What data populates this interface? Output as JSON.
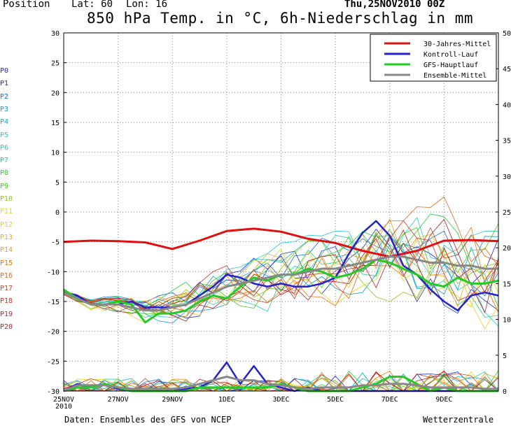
{
  "header": {
    "position_label": "Position",
    "lat_label": "Lat: 60",
    "lon_label": "Lon: 16",
    "date": "Thu,25NOV2010 00Z",
    "title": "850 hPa Temp. in °C, 6h-Niederschlag in mm"
  },
  "footer": {
    "source": "Daten: Ensembles des GFS von NCEP",
    "brand": "Wetterzentrale"
  },
  "member_labels": [
    "P0",
    "P1",
    "P2",
    "P3",
    "P4",
    "P5",
    "P6",
    "P7",
    "P8",
    "P9",
    "P10",
    "P11",
    "P12",
    "P13",
    "P14",
    "P15",
    "P16",
    "P17",
    "P18",
    "P19",
    "P20"
  ],
  "member_colors": [
    "#2222dd",
    "#1133cc",
    "#1166dd",
    "#1199dd",
    "#11aacc",
    "#22cccc",
    "#22ccaa",
    "#22cc77",
    "#22cc33",
    "#44cc11",
    "#88cc11",
    "#dddd11",
    "#eecc22",
    "#eeaa22",
    "#ee9922",
    "#ee7711",
    "#dd6622",
    "#cc4422",
    "#cc3322",
    "#bb2222",
    "#aa2222"
  ],
  "chart_data": {
    "type": "line",
    "x_ticks": [
      "25NOV\n2010",
      "27NOV",
      "29NOV",
      "1DEC",
      "3DEC",
      "5DEC",
      "7DEC",
      "9DEC"
    ],
    "x_range_days": [
      0,
      16
    ],
    "y_left_range": [
      -30,
      30
    ],
    "y_left_ticks": [
      30,
      25,
      20,
      15,
      10,
      5,
      0,
      -5,
      -10,
      -15,
      -20,
      -25,
      -30
    ],
    "y_right_range": [
      0,
      50
    ],
    "y_right_ticks": [
      50,
      45,
      40,
      35,
      30,
      25,
      20,
      15,
      10,
      5,
      0
    ],
    "grid": true,
    "legend_position": "top-right",
    "legend": [
      {
        "name": "30-Jahres-Mittel",
        "color": "#e01010"
      },
      {
        "name": "Kontroll-Lauf",
        "color": "#2222cc"
      },
      {
        "name": "GFS-Hauptlauf",
        "color": "#22cc22"
      },
      {
        "name": "Ensemble-Mittel",
        "color": "#888888"
      }
    ],
    "series": [
      {
        "name": "30-Jahres-Mittel",
        "color": "#e01010",
        "width": 3,
        "x": [
          0,
          1,
          2,
          3,
          4,
          5,
          6,
          7,
          8,
          9,
          10,
          11,
          12,
          13,
          14,
          15,
          16
        ],
        "y": [
          -5,
          -4.8,
          -4.9,
          -5.1,
          -6.2,
          -4.8,
          -3.2,
          -2.8,
          -3.3,
          -4.5,
          -5.2,
          -6.5,
          -7.5,
          -6.5,
          -4.8,
          -4.7,
          -4.9
        ]
      },
      {
        "name": "Kontroll-Lauf",
        "color": "#2222cc",
        "width": 2.5,
        "x": [
          0,
          0.5,
          1,
          1.5,
          2,
          2.5,
          3,
          3.5,
          4,
          4.5,
          5,
          5.5,
          6,
          6.5,
          7,
          7.5,
          8,
          8.5,
          9,
          9.5,
          10,
          10.5,
          11,
          11.5,
          12,
          12.5,
          13,
          13.5,
          14,
          14.5,
          15,
          15.5,
          16
        ],
        "y": [
          -13.5,
          -14,
          -15.5,
          -15.5,
          -15.5,
          -15,
          -16,
          -16,
          -16,
          -15.5,
          -14,
          -12.5,
          -10.5,
          -11,
          -12,
          -12.5,
          -12,
          -12.5,
          -12.5,
          -12,
          -11,
          -7,
          -3.5,
          -1.5,
          -4,
          -9,
          -10.5,
          -13,
          -15,
          -16.5,
          -14,
          -13.5,
          -14
        ]
      },
      {
        "name": "GFS-Hauptlauf",
        "color": "#22cc22",
        "width": 3,
        "x": [
          0,
          0.5,
          1,
          1.5,
          2,
          2.5,
          3,
          3.5,
          4,
          4.5,
          5,
          5.5,
          6,
          6.5,
          7,
          7.5,
          8,
          8.5,
          9,
          9.5,
          10,
          10.5,
          11,
          11.5,
          12,
          12.5,
          13,
          13.5,
          14,
          14.5,
          15,
          15.5,
          16
        ],
        "y": [
          -13,
          -14.5,
          -15.5,
          -15.5,
          -15,
          -15.5,
          -18.5,
          -17,
          -17,
          -16.5,
          -15,
          -14,
          -14.5,
          -12.5,
          -11,
          -11.5,
          -10.5,
          -10.5,
          -9.5,
          -10,
          -11,
          -10.5,
          -9.5,
          -8,
          -8.5,
          -9.5,
          -10.5,
          -12,
          -12.5,
          -11,
          -12,
          -12,
          -11.5
        ]
      },
      {
        "name": "Ensemble-Mittel",
        "color": "#888888",
        "width": 3,
        "x": [
          0,
          0.5,
          1,
          1.5,
          2,
          2.5,
          3,
          3.5,
          4,
          4.5,
          5,
          5.5,
          6,
          6.5,
          7,
          7.5,
          8,
          8.5,
          9,
          9.5,
          10,
          10.5,
          11,
          11.5,
          12,
          12.5,
          13,
          13.5,
          14,
          14.5,
          15,
          15.5,
          16
        ],
        "y": [
          -13.5,
          -14.5,
          -15.5,
          -15.5,
          -15.5,
          -16,
          -16.5,
          -16.5,
          -16,
          -15.5,
          -14.5,
          -13.5,
          -12.5,
          -12,
          -11.5,
          -11,
          -10.5,
          -10.5,
          -10,
          -9.5,
          -9.5,
          -9,
          -8.5,
          -8,
          -7.5,
          -7.5,
          -8,
          -8.5,
          -8.5,
          -9,
          -9,
          -9.5,
          -9.5
        ]
      }
    ],
    "precip_series": [
      {
        "name": "Kontroll-Lauf",
        "color": "#2222cc",
        "width": 2.5,
        "x": [
          0,
          0.5,
          1,
          1.5,
          2,
          2.5,
          3,
          3.5,
          4,
          4.5,
          5,
          5.5,
          6,
          6.5,
          7,
          7.5,
          8,
          8.5,
          9,
          9.5,
          10,
          10.5,
          11,
          11.5,
          12,
          12.5,
          13,
          13.5,
          14,
          14.5,
          15,
          15.5,
          16
        ],
        "y": [
          0,
          1,
          0.5,
          1,
          0.3,
          0,
          0,
          0,
          0,
          0.3,
          0.5,
          1.5,
          4,
          1,
          3.5,
          1,
          0.5,
          0,
          0.5,
          0,
          0,
          0,
          0,
          0,
          0,
          0,
          0,
          0,
          0,
          0,
          0,
          0,
          0
        ]
      },
      {
        "name": "GFS-Hauptlauf",
        "color": "#22cc22",
        "width": 3,
        "x": [
          0,
          0.5,
          1,
          1.5,
          2,
          2.5,
          3,
          3.5,
          4,
          4.5,
          5,
          5.5,
          6,
          6.5,
          7,
          7.5,
          8,
          8.5,
          9,
          9.5,
          10,
          10.5,
          11,
          11.5,
          12,
          12.5,
          13,
          13.5,
          14,
          14.5,
          15,
          15.5,
          16
        ],
        "y": [
          0,
          0.5,
          0.5,
          1,
          0.5,
          0,
          0,
          0,
          0,
          0,
          0.5,
          0.5,
          0.5,
          0.5,
          0.5,
          0.5,
          1,
          0.5,
          0,
          0,
          0,
          0,
          0.5,
          1,
          2,
          2,
          1,
          0,
          0.5,
          0,
          0,
          0,
          0
        ]
      },
      {
        "name": "Ensemble-Mittel",
        "color": "#888888",
        "width": 3,
        "x": [
          0,
          0.5,
          1,
          1.5,
          2,
          2.5,
          3,
          3.5,
          4,
          4.5,
          5,
          5.5,
          6,
          6.5,
          7,
          7.5,
          8,
          8.5,
          9,
          9.5,
          10,
          10.5,
          11,
          11.5,
          12,
          12.5,
          13,
          13.5,
          14,
          14.5,
          15,
          15.5,
          16
        ],
        "y": [
          0,
          0.8,
          0.8,
          0.8,
          0.5,
          0.3,
          0.3,
          0.3,
          0.3,
          0.5,
          1,
          1.5,
          2,
          1.5,
          1.5,
          1,
          0.8,
          0.5,
          0.3,
          0.5,
          0.5,
          0.5,
          0.8,
          0.8,
          1,
          1,
          0.8,
          0.5,
          0.5,
          0.5,
          0.5,
          0.3,
          0.3
        ]
      }
    ]
  }
}
